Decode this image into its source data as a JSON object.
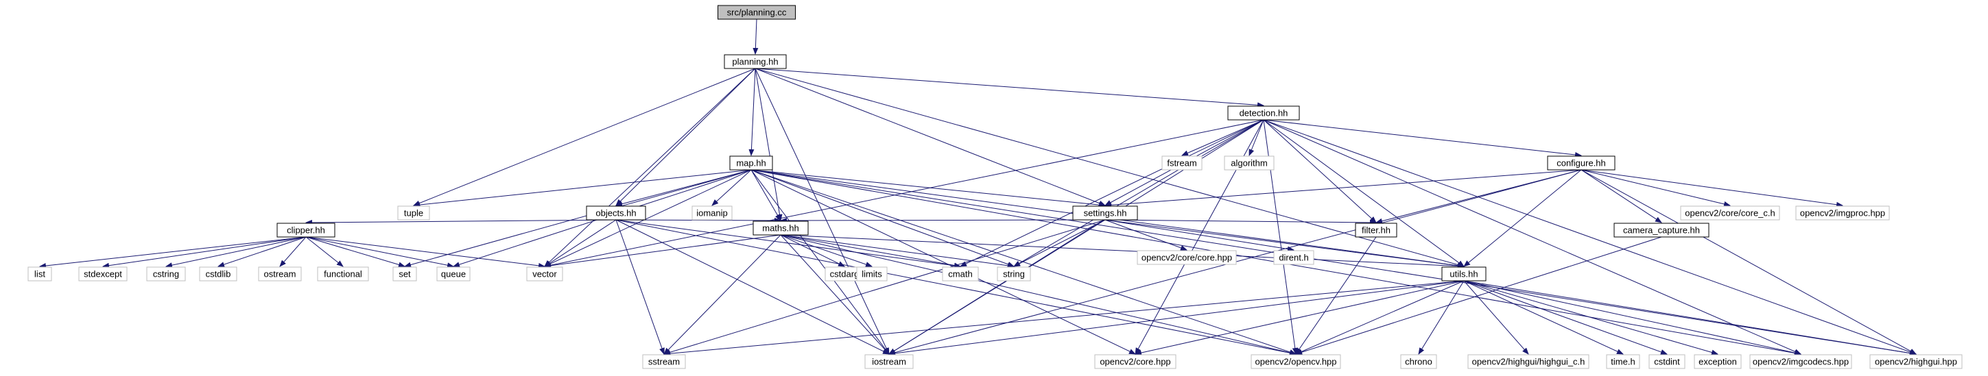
{
  "colors": {
    "edge": "#191970",
    "root_fill": "#bfbfbf",
    "box_fill": "#ffffff",
    "box_stroke": "#000000",
    "system_stroke": "#bfbfbf"
  },
  "nodes": [
    {
      "id": "planning_cc",
      "label": "src/planning.cc",
      "kind": "root"
    },
    {
      "id": "planning_hh",
      "label": "planning.hh",
      "kind": "file"
    },
    {
      "id": "detection_hh",
      "label": "detection.hh",
      "kind": "file"
    },
    {
      "id": "map_hh",
      "label": "map.hh",
      "kind": "file"
    },
    {
      "id": "configure_hh",
      "label": "configure.hh",
      "kind": "file"
    },
    {
      "id": "settings_hh",
      "label": "settings.hh",
      "kind": "file"
    },
    {
      "id": "objects_hh",
      "label": "objects.hh",
      "kind": "file"
    },
    {
      "id": "maths_hh",
      "label": "maths.hh",
      "kind": "file"
    },
    {
      "id": "clipper_hh",
      "label": "clipper.hh",
      "kind": "file"
    },
    {
      "id": "filter_hh",
      "label": "filter.hh",
      "kind": "file"
    },
    {
      "id": "camera_capture_hh",
      "label": "camera_capture.hh",
      "kind": "file"
    },
    {
      "id": "utils_hh",
      "label": "utils.hh",
      "kind": "file"
    },
    {
      "id": "tuple",
      "label": "tuple",
      "kind": "system"
    },
    {
      "id": "iomanip",
      "label": "iomanip",
      "kind": "system"
    },
    {
      "id": "fstream",
      "label": "fstream",
      "kind": "system"
    },
    {
      "id": "algorithm",
      "label": "algorithm",
      "kind": "system"
    },
    {
      "id": "iostream",
      "label": "iostream",
      "kind": "system"
    },
    {
      "id": "opencv2_core_core_c_h",
      "label": "opencv2/core/core_c.h",
      "kind": "system"
    },
    {
      "id": "opencv2_imgproc_hpp",
      "label": "opencv2/imgproc.hpp",
      "kind": "system"
    },
    {
      "id": "opencv2_core_core_hpp",
      "label": "opencv2/core/core.hpp",
      "kind": "system"
    },
    {
      "id": "dirent_h",
      "label": "dirent.h",
      "kind": "system"
    },
    {
      "id": "list",
      "label": "list",
      "kind": "system"
    },
    {
      "id": "stdexcept",
      "label": "stdexcept",
      "kind": "system"
    },
    {
      "id": "cstring",
      "label": "cstring",
      "kind": "system"
    },
    {
      "id": "cstdlib",
      "label": "cstdlib",
      "kind": "system"
    },
    {
      "id": "ostream",
      "label": "ostream",
      "kind": "system"
    },
    {
      "id": "functional",
      "label": "functional",
      "kind": "system"
    },
    {
      "id": "set",
      "label": "set",
      "kind": "system"
    },
    {
      "id": "queue",
      "label": "queue",
      "kind": "system"
    },
    {
      "id": "vector",
      "label": "vector",
      "kind": "system"
    },
    {
      "id": "cstdarg",
      "label": "cstdarg",
      "kind": "system"
    },
    {
      "id": "limits",
      "label": "limits",
      "kind": "system"
    },
    {
      "id": "cmath",
      "label": "cmath",
      "kind": "system"
    },
    {
      "id": "string",
      "label": "string",
      "kind": "system"
    },
    {
      "id": "sstream",
      "label": "sstream",
      "kind": "system"
    },
    {
      "id": "opencv2_core_hpp",
      "label": "opencv2/core.hpp",
      "kind": "system"
    },
    {
      "id": "opencv2_opencv_hpp",
      "label": "opencv2/opencv.hpp",
      "kind": "system"
    },
    {
      "id": "chrono",
      "label": "chrono",
      "kind": "system"
    },
    {
      "id": "opencv2_highgui_highgui_c_h",
      "label": "opencv2/highgui/highgui_c.h",
      "kind": "system"
    },
    {
      "id": "time_h",
      "label": "time.h",
      "kind": "system"
    },
    {
      "id": "cstdint",
      "label": "cstdint",
      "kind": "system"
    },
    {
      "id": "exception",
      "label": "exception",
      "kind": "system"
    },
    {
      "id": "opencv2_imgcodecs_hpp",
      "label": "opencv2/imgcodecs.hpp",
      "kind": "system"
    },
    {
      "id": "opencv2_highgui_hpp",
      "label": "opencv2/highgui.hpp",
      "kind": "system"
    }
  ],
  "edges": [
    [
      "planning_cc",
      "planning_hh"
    ],
    [
      "planning_hh",
      "detection_hh"
    ],
    [
      "planning_hh",
      "map_hh"
    ],
    [
      "planning_hh",
      "objects_hh"
    ],
    [
      "planning_hh",
      "maths_hh"
    ],
    [
      "planning_hh",
      "settings_hh"
    ],
    [
      "planning_hh",
      "tuple"
    ],
    [
      "planning_hh",
      "vector"
    ],
    [
      "planning_hh",
      "iostream"
    ],
    [
      "planning_hh",
      "utils_hh"
    ],
    [
      "detection_hh",
      "configure_hh"
    ],
    [
      "detection_hh",
      "settings_hh"
    ],
    [
      "detection_hh",
      "fstream"
    ],
    [
      "detection_hh",
      "algorithm"
    ],
    [
      "detection_hh",
      "filter_hh"
    ],
    [
      "detection_hh",
      "utils_hh"
    ],
    [
      "detection_hh",
      "vector"
    ],
    [
      "detection_hh",
      "cmath"
    ],
    [
      "detection_hh",
      "string"
    ],
    [
      "detection_hh",
      "iostream"
    ],
    [
      "detection_hh",
      "opencv2_core_hpp"
    ],
    [
      "detection_hh",
      "opencv2_opencv_hpp"
    ],
    [
      "detection_hh",
      "opencv2_imgcodecs_hpp"
    ],
    [
      "detection_hh",
      "opencv2_highgui_hpp"
    ],
    [
      "map_hh",
      "tuple"
    ],
    [
      "map_hh",
      "objects_hh"
    ],
    [
      "map_hh",
      "iomanip"
    ],
    [
      "map_hh",
      "maths_hh"
    ],
    [
      "map_hh",
      "settings_hh"
    ],
    [
      "map_hh",
      "utils_hh"
    ],
    [
      "map_hh",
      "set"
    ],
    [
      "map_hh",
      "queue"
    ],
    [
      "map_hh",
      "vector"
    ],
    [
      "map_hh",
      "iostream"
    ],
    [
      "map_hh",
      "string"
    ],
    [
      "map_hh",
      "opencv2_core_hpp"
    ],
    [
      "map_hh",
      "opencv2_opencv_hpp"
    ],
    [
      "map_hh",
      "opencv2_imgcodecs_hpp"
    ],
    [
      "map_hh",
      "opencv2_highgui_hpp"
    ],
    [
      "configure_hh",
      "settings_hh"
    ],
    [
      "configure_hh",
      "opencv2_core_core_c_h"
    ],
    [
      "configure_hh",
      "opencv2_imgproc_hpp"
    ],
    [
      "configure_hh",
      "camera_capture_hh"
    ],
    [
      "configure_hh",
      "filter_hh"
    ],
    [
      "configure_hh",
      "utils_hh"
    ],
    [
      "configure_hh",
      "iostream"
    ],
    [
      "configure_hh",
      "opencv2_highgui_hpp"
    ],
    [
      "settings_hh",
      "opencv2_core_core_hpp"
    ],
    [
      "settings_hh",
      "dirent_h"
    ],
    [
      "settings_hh",
      "filter_hh"
    ],
    [
      "settings_hh",
      "maths_hh"
    ],
    [
      "settings_hh",
      "utils_hh"
    ],
    [
      "settings_hh",
      "string"
    ],
    [
      "settings_hh",
      "sstream"
    ],
    [
      "settings_hh",
      "iostream"
    ],
    [
      "objects_hh",
      "clipper_hh"
    ],
    [
      "objects_hh",
      "maths_hh"
    ],
    [
      "objects_hh",
      "vector"
    ],
    [
      "objects_hh",
      "cmath"
    ],
    [
      "objects_hh",
      "iostream"
    ],
    [
      "objects_hh",
      "opencv2_opencv_hpp"
    ],
    [
      "objects_hh",
      "sstream"
    ],
    [
      "maths_hh",
      "vector"
    ],
    [
      "maths_hh",
      "cstdarg"
    ],
    [
      "maths_hh",
      "limits"
    ],
    [
      "maths_hh",
      "cmath"
    ],
    [
      "maths_hh",
      "string"
    ],
    [
      "maths_hh",
      "sstream"
    ],
    [
      "maths_hh",
      "iostream"
    ],
    [
      "maths_hh",
      "utils_hh"
    ],
    [
      "maths_hh",
      "opencv2_opencv_hpp"
    ],
    [
      "clipper_hh",
      "list"
    ],
    [
      "clipper_hh",
      "stdexcept"
    ],
    [
      "clipper_hh",
      "cstring"
    ],
    [
      "clipper_hh",
      "cstdlib"
    ],
    [
      "clipper_hh",
      "ostream"
    ],
    [
      "clipper_hh",
      "functional"
    ],
    [
      "clipper_hh",
      "set"
    ],
    [
      "clipper_hh",
      "queue"
    ],
    [
      "clipper_hh",
      "vector"
    ],
    [
      "filter_hh",
      "opencv2_opencv_hpp"
    ],
    [
      "camera_capture_hh",
      "opencv2_opencv_hpp"
    ],
    [
      "utils_hh",
      "sstream"
    ],
    [
      "utils_hh",
      "iostream"
    ],
    [
      "utils_hh",
      "opencv2_core_hpp"
    ],
    [
      "utils_hh",
      "opencv2_opencv_hpp"
    ],
    [
      "utils_hh",
      "chrono"
    ],
    [
      "utils_hh",
      "opencv2_highgui_highgui_c_h"
    ],
    [
      "utils_hh",
      "time_h"
    ],
    [
      "utils_hh",
      "cstdint"
    ],
    [
      "utils_hh",
      "exception"
    ],
    [
      "utils_hh",
      "opencv2_imgcodecs_hpp"
    ],
    [
      "utils_hh",
      "opencv2_highgui_hpp"
    ]
  ]
}
